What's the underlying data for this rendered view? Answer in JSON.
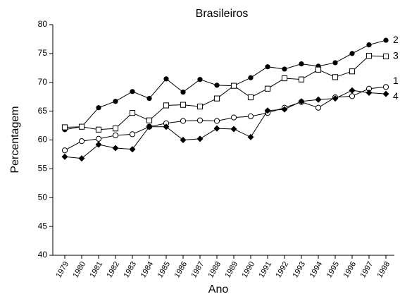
{
  "chart_data": {
    "type": "line",
    "title": "Brasileiros",
    "xlabel": "Ano",
    "ylabel": "Percentagem",
    "categories": [
      "1979",
      "1980",
      "1981",
      "1982",
      "1983",
      "1984",
      "1985",
      "1986",
      "1987",
      "1988",
      "1989",
      "1990",
      "1991",
      "1992",
      "1993",
      "1994",
      "1995",
      "1996",
      "1997",
      "1998"
    ],
    "ylim": [
      40,
      80
    ],
    "yticks": [
      40,
      45,
      50,
      55,
      60,
      65,
      70,
      75,
      80
    ],
    "grid": false,
    "series": [
      {
        "name": "2",
        "color": "#000000",
        "marker": "circle-filled",
        "values": [
          61.8,
          62.3,
          65.6,
          66.7,
          68.4,
          67.2,
          70.6,
          68.3,
          70.5,
          69.5,
          69.4,
          70.8,
          72.7,
          72.3,
          73.2,
          72.8,
          73.4,
          75.0,
          76.5,
          77.3
        ]
      },
      {
        "name": "3",
        "color": "#000000",
        "marker": "square-open",
        "values": [
          62.2,
          62.3,
          61.8,
          62.0,
          64.7,
          63.4,
          66.0,
          66.1,
          65.8,
          67.2,
          69.4,
          67.4,
          68.9,
          70.7,
          70.5,
          72.2,
          70.9,
          71.9,
          74.6,
          74.5
        ]
      },
      {
        "name": "1",
        "color": "#000000",
        "marker": "circle-open",
        "values": [
          58.2,
          59.8,
          60.2,
          60.8,
          61.0,
          62.3,
          62.9,
          63.3,
          63.4,
          63.3,
          63.9,
          64.1,
          64.7,
          65.6,
          66.6,
          65.6,
          67.4,
          67.6,
          68.9,
          69.2
        ]
      },
      {
        "name": "4",
        "color": "#000000",
        "marker": "diamond-filled",
        "values": [
          57.1,
          56.8,
          59.2,
          58.6,
          58.4,
          62.3,
          62.3,
          60.0,
          60.2,
          62.0,
          61.9,
          60.5,
          65.1,
          65.3,
          66.7,
          67.0,
          67.2,
          68.6,
          68.2,
          68.0
        ]
      }
    ]
  }
}
